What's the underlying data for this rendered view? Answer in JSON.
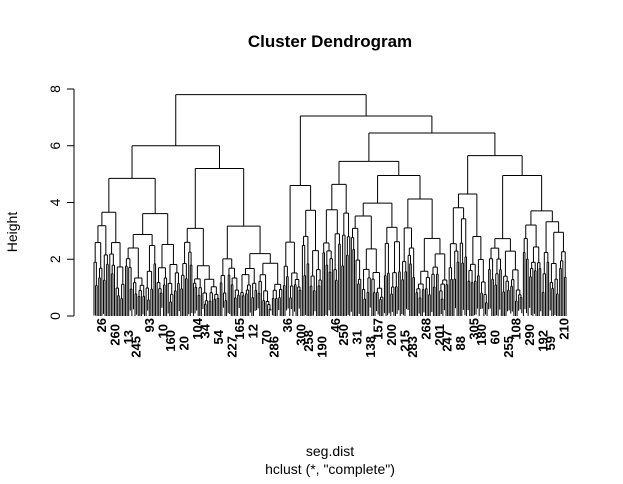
{
  "chart_data": {
    "type": "dendrogram",
    "title": "Cluster Dendrogram",
    "ylabel": "Height",
    "xlabel": "seg.dist",
    "sub": "hclust (*, \"complete\")",
    "ylim": [
      0,
      8
    ],
    "yticks": [
      0,
      2,
      4,
      6,
      8
    ],
    "leaf_count": 300,
    "merges": [
      {
        "height": 7.8,
        "left_leaves": 120,
        "right_leaves": 180
      },
      {
        "height": 6.0,
        "left_leaves": 55,
        "right_leaves": 65
      },
      {
        "height": 7.05,
        "left_leaves": 25,
        "right_leaves": 155
      },
      {
        "height": 6.45,
        "left_leaves": 80,
        "right_leaves": 75
      },
      {
        "height": 5.45,
        "left_leaves": 18,
        "right_leaves": 62
      },
      {
        "height": 5.65,
        "left_leaves": 25,
        "right_leaves": 50
      },
      {
        "height": 4.85,
        "left_leaves": 20,
        "right_leaves": 35
      },
      {
        "height": 5.2,
        "left_leaves": 25,
        "right_leaves": 40
      },
      {
        "height": 4.6,
        "left_leaves": 12,
        "right_leaves": 13
      },
      {
        "height": 4.95,
        "left_leaves": 32,
        "right_leaves": 30
      },
      {
        "height": 4.95,
        "left_leaves": 22,
        "right_leaves": 28
      },
      {
        "height": 4.3,
        "left_leaves": 12,
        "right_leaves": 13
      }
    ],
    "leaf_labels": [
      "26",
      "260",
      "13",
      "245",
      "93",
      "10",
      "160",
      "20",
      "104",
      "34",
      "54",
      "227",
      "165",
      "12",
      "70",
      "286",
      "36",
      "300",
      "258",
      "190",
      "46",
      "250",
      "31",
      "138",
      "157",
      "200",
      "215",
      "283",
      "268",
      "201",
      "247",
      "88",
      "305",
      "180",
      "60",
      "255",
      "108",
      "290",
      "192",
      "59",
      "210"
    ]
  }
}
